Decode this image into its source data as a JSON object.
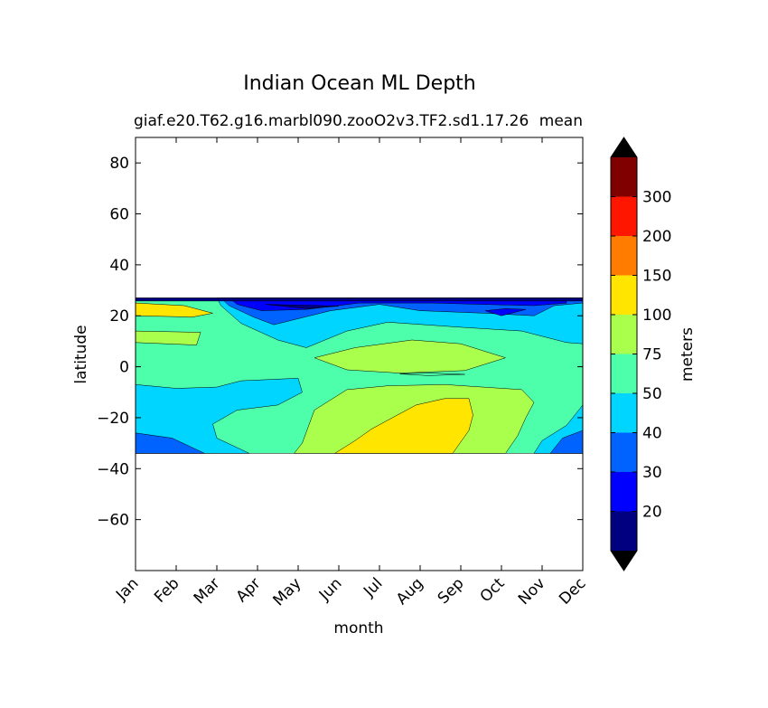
{
  "chart_data": {
    "type": "heatmap",
    "plot_style": "filled-contour",
    "title": "Indian Ocean ML Depth",
    "subtitle_left": "giaf.e20.T62.g16.marbl090.zooO2v3.TF2.sd1.17.26",
    "subtitle_right": "mean",
    "xlabel": "month",
    "ylabel": "latitude",
    "x_categories": [
      "Jan",
      "Feb",
      "Mar",
      "Apr",
      "May",
      "Jun",
      "Jul",
      "Aug",
      "Sep",
      "Oct",
      "Nov",
      "Dec"
    ],
    "xlim": [
      0,
      11
    ],
    "ylim": [
      -80,
      90
    ],
    "y_ticks": [
      80,
      60,
      40,
      20,
      0,
      -20,
      -40,
      -60
    ],
    "data_lat_range": [
      -34,
      27
    ],
    "colorbar": {
      "label": "meters",
      "levels": [
        20,
        30,
        40,
        50,
        75,
        100,
        150,
        200,
        300
      ],
      "tick_labels": [
        "20",
        "30",
        "40",
        "50",
        "75",
        "100",
        "150",
        "200",
        "300"
      ],
      "colors": [
        "#000080",
        "#0000ff",
        "#0063ff",
        "#00d5ff",
        "#4dffaa",
        "#aaff4d",
        "#ffe500",
        "#ff7c00",
        "#ff1600",
        "#800000"
      ],
      "extend": "both",
      "under_color": "#000000",
      "over_color": "#000000"
    },
    "band_colors": {
      "nearest_north_edge_band": "#000080",
      "shallow_north": "#0000ff",
      "north_band": "#0063ff",
      "tropical_band": "#00d5ff",
      "mid_band": "#4dffaa",
      "deeper_band": "#aaff4d",
      "deepest_band": "#ffe500"
    }
  }
}
